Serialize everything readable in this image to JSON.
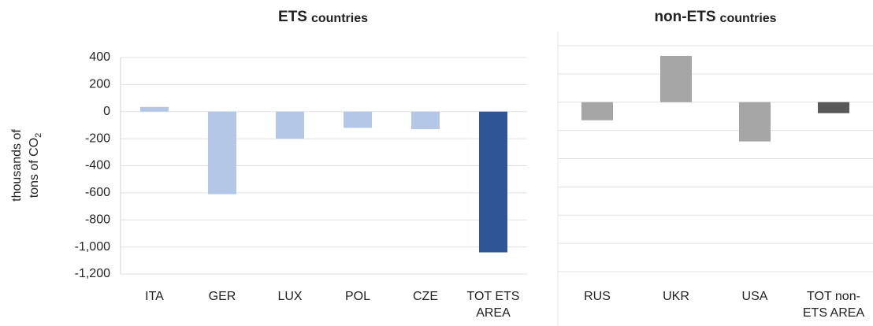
{
  "chart_data": [
    {
      "type": "bar",
      "title": "ETS",
      "title_sub": "countries",
      "ylabel": [
        "thousands of",
        "tons of CO"
      ],
      "ylabel_sub": "2",
      "categories": [
        "ITA",
        "GER",
        "LUX",
        "POL",
        "CZE",
        "TOT ETS AREA"
      ],
      "values": [
        35,
        -610,
        -200,
        -120,
        -130,
        -1040
      ],
      "colors": [
        "#b4c7e7",
        "#b4c7e7",
        "#b4c7e7",
        "#b4c7e7",
        "#b4c7e7",
        "#2f5597"
      ],
      "ylim": [
        -1200,
        400
      ],
      "yticks": [
        {
          "value": -1200,
          "label": "-1,200"
        },
        {
          "value": -1000,
          "label": "-1,000"
        },
        -800,
        -600,
        -400,
        -200,
        0,
        200,
        400
      ],
      "tick_labels": true,
      "grid": true
    },
    {
      "type": "bar",
      "title": "non-ETS",
      "title_sub": "countries",
      "categories": [
        "RUS",
        "UKR",
        "USA",
        "TOT non-ETS AREA"
      ],
      "values": [
        -128,
        328,
        -278,
        -78
      ],
      "colors": [
        "#a6a6a6",
        "#a6a6a6",
        "#a6a6a6",
        "#595959"
      ],
      "ylim": [
        -1200,
        400
      ],
      "yticks": [
        -1200,
        -1000,
        -800,
        -600,
        -400,
        -200,
        0,
        200,
        400
      ],
      "tick_labels": false,
      "grid": true
    }
  ]
}
